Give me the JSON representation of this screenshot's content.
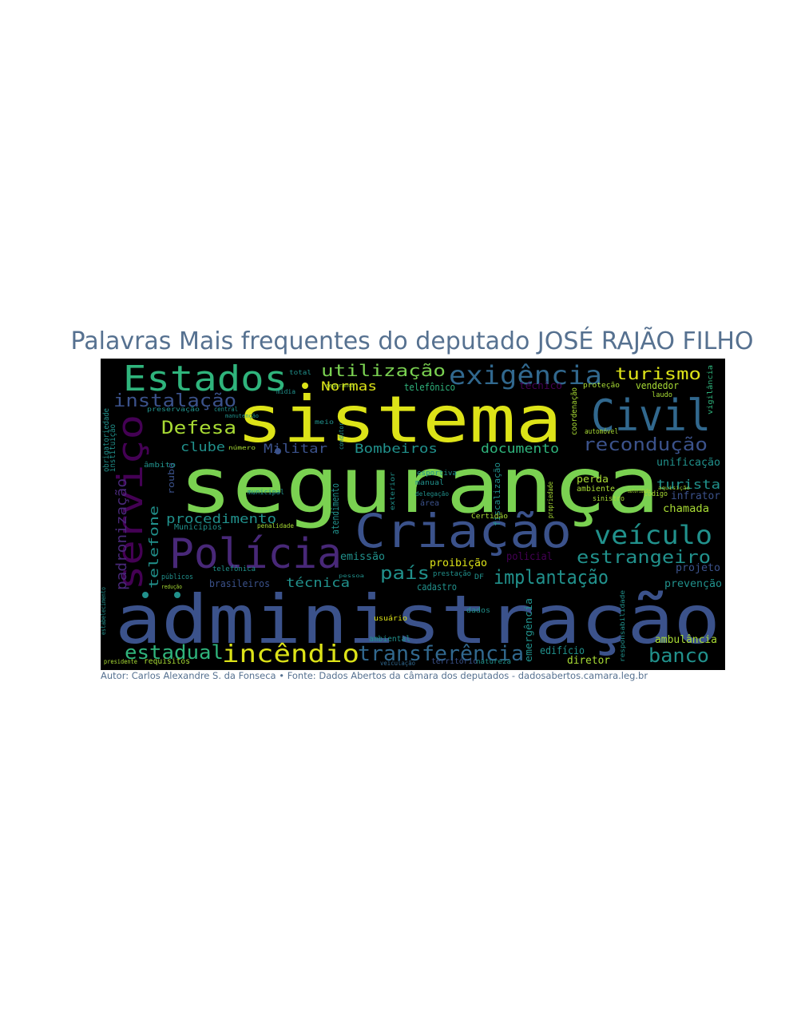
{
  "title": "Palavras Mais frequentes do deputado JOSÉ RAJÃO FILHO",
  "caption": "Autor: Carlos Alexandre S. da Fonseca • Fonte: Dados Abertos da câmara dos deputados - dadosabertos.camara.leg.br",
  "colors": {
    "yellow": "#dde318",
    "lime": "#7ad151",
    "green": "#2fb47c",
    "teal": "#21918c",
    "blue": "#31688e",
    "indigo": "#3b528b",
    "purple": "#482878",
    "dark": "#440154",
    "olive": "#a8db34",
    "sea": "#1fa187"
  },
  "words": [
    "sistema",
    "segurança",
    "administração",
    "Criação",
    "Polícia",
    "Civil",
    "serviço",
    "Estados",
    "exigência",
    "veículo",
    "incêndio",
    "transferência",
    "estadual",
    "banco",
    "implantação",
    "estrangeiro",
    "recondução",
    "país",
    "instalação",
    "utilização",
    "turismo",
    "Defesa",
    "Militar",
    "Bombeiros",
    "documento",
    "clube",
    "procedimento",
    "padronização",
    "telefone",
    "técnica",
    "turista",
    "unificação",
    "infrator",
    "chamada",
    "projeto",
    "prevenção",
    "ambulância",
    "diretor",
    "edifício",
    "emissão",
    "proibição",
    "Normas",
    "telefônico",
    "policial",
    "perda",
    "ambiente",
    "atendimento",
    "roubo",
    "Municípios",
    "brasileiros",
    "cadastro",
    "vendedor",
    "laudo",
    "automóvel",
    "sinistro",
    "código",
    "emergência",
    "dados",
    "usuário",
    "ambiental",
    "território",
    "requisitos",
    "território",
    "natureza",
    "presidente",
    "veiculação",
    "técnico",
    "proteção",
    "vigilância",
    "obrigatoriedade",
    "instituição",
    "âmbito",
    "municipal",
    "penalidade",
    "telefônica",
    "públicos",
    "redução",
    "esportiva",
    "manual",
    "delegação",
    "área",
    "fiscalização",
    "propriedade",
    "estabelecimento",
    "prestação",
    "DF",
    "Certidão",
    "responsabilidade",
    "total",
    "meio",
    "mídia",
    "manutenção",
    "central",
    "preservação",
    "número",
    "segurança",
    "aquisição",
    "autoridade",
    "pessoa",
    "exterior",
    "coordenação",
    "condutor",
    "sigilo"
  ]
}
